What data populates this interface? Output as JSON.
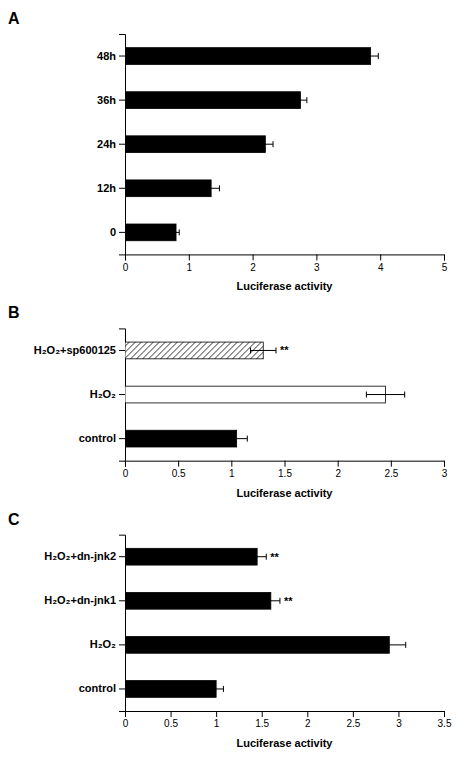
{
  "chart_data": [
    {
      "type": "bar",
      "orientation": "horizontal",
      "title": "A",
      "categories": [
        "0",
        "12h",
        "24h",
        "36h",
        "48h"
      ],
      "values": [
        0.8,
        1.35,
        2.2,
        2.75,
        3.85
      ],
      "errors": [
        0.05,
        0.13,
        0.12,
        0.1,
        0.12
      ],
      "colors": [
        "black",
        "black",
        "black",
        "black",
        "black"
      ],
      "xlim": [
        0,
        5
      ],
      "xticks": [
        0,
        1,
        2,
        3,
        4,
        5
      ],
      "xlabel": "Luciferase activity",
      "grid": false
    },
    {
      "type": "bar",
      "orientation": "horizontal",
      "title": "B",
      "categories": [
        "control",
        "H₂O₂",
        "H₂O₂+sp600125"
      ],
      "values": [
        1.05,
        2.45,
        1.3
      ],
      "errors": [
        0.1,
        0.18,
        0.12
      ],
      "colors": [
        "black",
        "white",
        "hatched"
      ],
      "xlim": [
        0,
        3
      ],
      "xticks": [
        0,
        0.5,
        1,
        1.5,
        2,
        2.5,
        3
      ],
      "xlabel": "Luciferase activity",
      "annotations": [
        null,
        null,
        "**"
      ],
      "grid": false
    },
    {
      "type": "bar",
      "orientation": "horizontal",
      "title": "C",
      "categories": [
        "control",
        "H₂O₂",
        "H₂O₂+dn-jnk1",
        "H₂O₂+dn-jnk2"
      ],
      "values": [
        1.0,
        2.9,
        1.6,
        1.45
      ],
      "errors": [
        0.08,
        0.18,
        0.1,
        0.1
      ],
      "colors": [
        "black",
        "black",
        "black",
        "black"
      ],
      "xlim": [
        0,
        3.5
      ],
      "xticks": [
        0,
        0.5,
        1,
        1.5,
        2,
        2.5,
        3,
        3.5
      ],
      "xlabel": "Luciferase activity",
      "annotations": [
        null,
        null,
        "**",
        "**"
      ],
      "grid": false
    }
  ]
}
